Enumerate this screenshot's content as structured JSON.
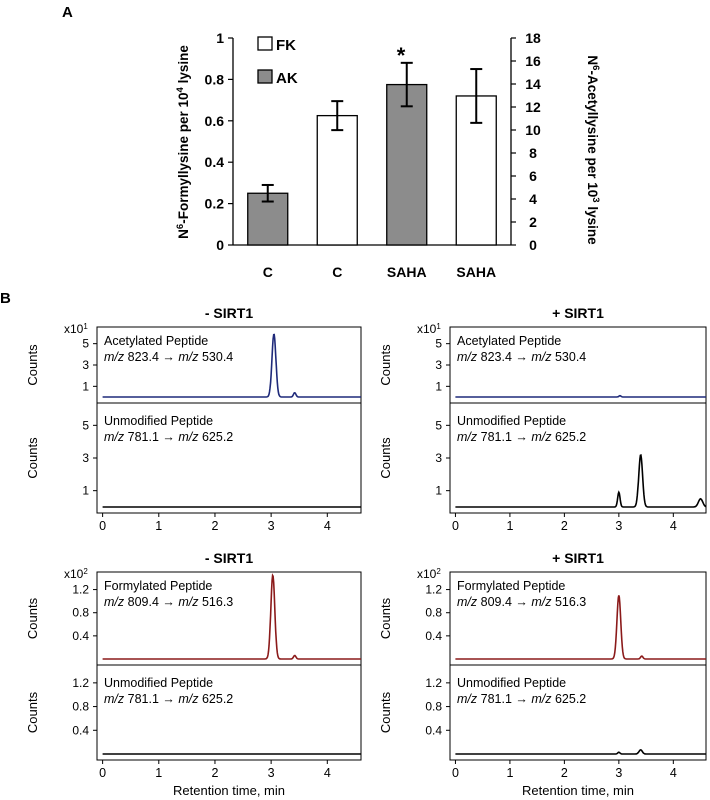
{
  "panel_a": {
    "letter": "A",
    "legend": [
      {
        "label": "FK",
        "color": "#ffffff"
      },
      {
        "label": "AK",
        "color": "#8c8c8c"
      }
    ],
    "ylabel_left_parts": [
      "N",
      "6",
      "-Formyllysine per 10",
      "4",
      " lysine"
    ],
    "ylabel_right_parts": [
      "N",
      "6",
      "-Acetyllysine per 10",
      "3",
      " lysine"
    ],
    "asterisk": "*"
  },
  "panel_b": {
    "letter": "B",
    "x_label": "Retention time, min",
    "counts_label": "Counts",
    "arrow": " → ",
    "mz": "m/z",
    "plots": [
      {
        "title": "- SIRT1",
        "multiplier_base": "x10",
        "multiplier_exp": "1",
        "top": {
          "name": "Acetylated Peptide",
          "mz_from": "823.4",
          "mz_to": "530.4"
        },
        "bottom": {
          "name": "Unmodified Peptide",
          "mz_from": "781.1",
          "mz_to": "625.2"
        }
      },
      {
        "title": "+ SIRT1",
        "multiplier_base": "x10",
        "multiplier_exp": "1",
        "top": {
          "name": "Acetylated Peptide",
          "mz_from": "823.4",
          "mz_to": "530.4"
        },
        "bottom": {
          "name": "Unmodified Peptide",
          "mz_from": "781.1",
          "mz_to": "625.2"
        }
      },
      {
        "title": "- SIRT1",
        "multiplier_base": "x10",
        "multiplier_exp": "2",
        "top": {
          "name": "Formylated Peptide",
          "mz_from": "809.4",
          "mz_to": "516.3"
        },
        "bottom": {
          "name": "Unmodified Peptide",
          "mz_from": "781.1",
          "mz_to": "625.2"
        }
      },
      {
        "title": "+ SIRT1",
        "multiplier_base": "x10",
        "multiplier_exp": "2",
        "top": {
          "name": "Formylated Peptide",
          "mz_from": "809.4",
          "mz_to": "516.3"
        },
        "bottom": {
          "name": "Unmodified Peptide",
          "mz_from": "781.1",
          "mz_to": "625.2"
        }
      }
    ]
  },
  "chart_data": [
    {
      "type": "bar",
      "categories": [
        "C",
        "C",
        "SAHA",
        "SAHA"
      ],
      "series": [
        {
          "name": "AK",
          "values": [
            0.25,
            null,
            0.775,
            null
          ],
          "errors": [
            0.04,
            null,
            0.105,
            null
          ],
          "color": "#8c8c8c"
        },
        {
          "name": "FK",
          "values": [
            null,
            0.625,
            null,
            0.72
          ],
          "errors": [
            null,
            0.07,
            null,
            0.13
          ],
          "color": "#ffffff"
        }
      ],
      "ylim": [
        0,
        1
      ],
      "yticks": [
        "0",
        "0.2",
        "0.4",
        "0.6",
        "0.8",
        "1"
      ],
      "y2lim": [
        0,
        18
      ],
      "y2ticks": [
        "0",
        "2",
        "4",
        "6",
        "8",
        "10",
        "12",
        "14",
        "16",
        "18"
      ],
      "annotation": "*",
      "legend_position": "top-left"
    },
    {
      "type": "line",
      "xlim": [
        -0.1,
        4.6
      ],
      "xticks": [
        "0",
        "1",
        "2",
        "3",
        "4"
      ],
      "top_trace": {
        "color": "#1f2a7a",
        "ylim": [
          0,
          6
        ],
        "yticks": [
          "1",
          "3",
          "5"
        ],
        "peaks": [
          {
            "x": 3.05,
            "y": 5.9,
            "w": 0.035
          },
          {
            "x": 3.42,
            "y": 0.4,
            "w": 0.022
          }
        ]
      },
      "bottom_trace": {
        "color": "#000000",
        "ylim": [
          0,
          6
        ],
        "yticks": [
          "1",
          "3",
          "5"
        ],
        "peaks": []
      }
    },
    {
      "type": "line",
      "xlim": [
        -0.1,
        4.6
      ],
      "xticks": [
        "0",
        "1",
        "2",
        "3",
        "4"
      ],
      "top_trace": {
        "color": "#1f2a7a",
        "ylim": [
          0,
          6
        ],
        "yticks": [
          "1",
          "3",
          "5"
        ],
        "peaks": [
          {
            "x": 3.02,
            "y": 0.12,
            "w": 0.02
          }
        ]
      },
      "bottom_trace": {
        "color": "#000000",
        "ylim": [
          0,
          6
        ],
        "yticks": [
          "1",
          "3",
          "5"
        ],
        "peaks": [
          {
            "x": 3.0,
            "y": 0.9,
            "w": 0.022
          },
          {
            "x": 3.4,
            "y": 3.2,
            "w": 0.035
          },
          {
            "x": 4.5,
            "y": 0.5,
            "w": 0.04
          }
        ]
      }
    },
    {
      "type": "line",
      "xlim": [
        -0.1,
        4.6
      ],
      "xticks": [
        "0",
        "1",
        "2",
        "3",
        "4"
      ],
      "top_trace": {
        "color": "#8b1a1a",
        "ylim": [
          0,
          1.4
        ],
        "yticks": [
          "0.4",
          "0.8",
          "1.2"
        ],
        "peaks": [
          {
            "x": 3.03,
            "y": 1.45,
            "w": 0.035
          },
          {
            "x": 3.42,
            "y": 0.06,
            "w": 0.022
          }
        ]
      },
      "bottom_trace": {
        "color": "#000000",
        "ylim": [
          0,
          1.4
        ],
        "yticks": [
          "0.4",
          "0.8",
          "1.2"
        ],
        "peaks": []
      }
    },
    {
      "type": "line",
      "xlim": [
        -0.1,
        4.6
      ],
      "xticks": [
        "0",
        "1",
        "2",
        "3",
        "4"
      ],
      "top_trace": {
        "color": "#8b1a1a",
        "ylim": [
          0,
          1.4
        ],
        "yticks": [
          "0.4",
          "0.8",
          "1.2"
        ],
        "peaks": [
          {
            "x": 3.0,
            "y": 1.1,
            "w": 0.035
          },
          {
            "x": 3.42,
            "y": 0.05,
            "w": 0.022
          }
        ]
      },
      "bottom_trace": {
        "color": "#000000",
        "ylim": [
          0,
          1.4
        ],
        "yticks": [
          "0.4",
          "0.8",
          "1.2"
        ],
        "peaks": [
          {
            "x": 3.0,
            "y": 0.03,
            "w": 0.02
          },
          {
            "x": 3.4,
            "y": 0.07,
            "w": 0.03
          }
        ]
      }
    }
  ]
}
